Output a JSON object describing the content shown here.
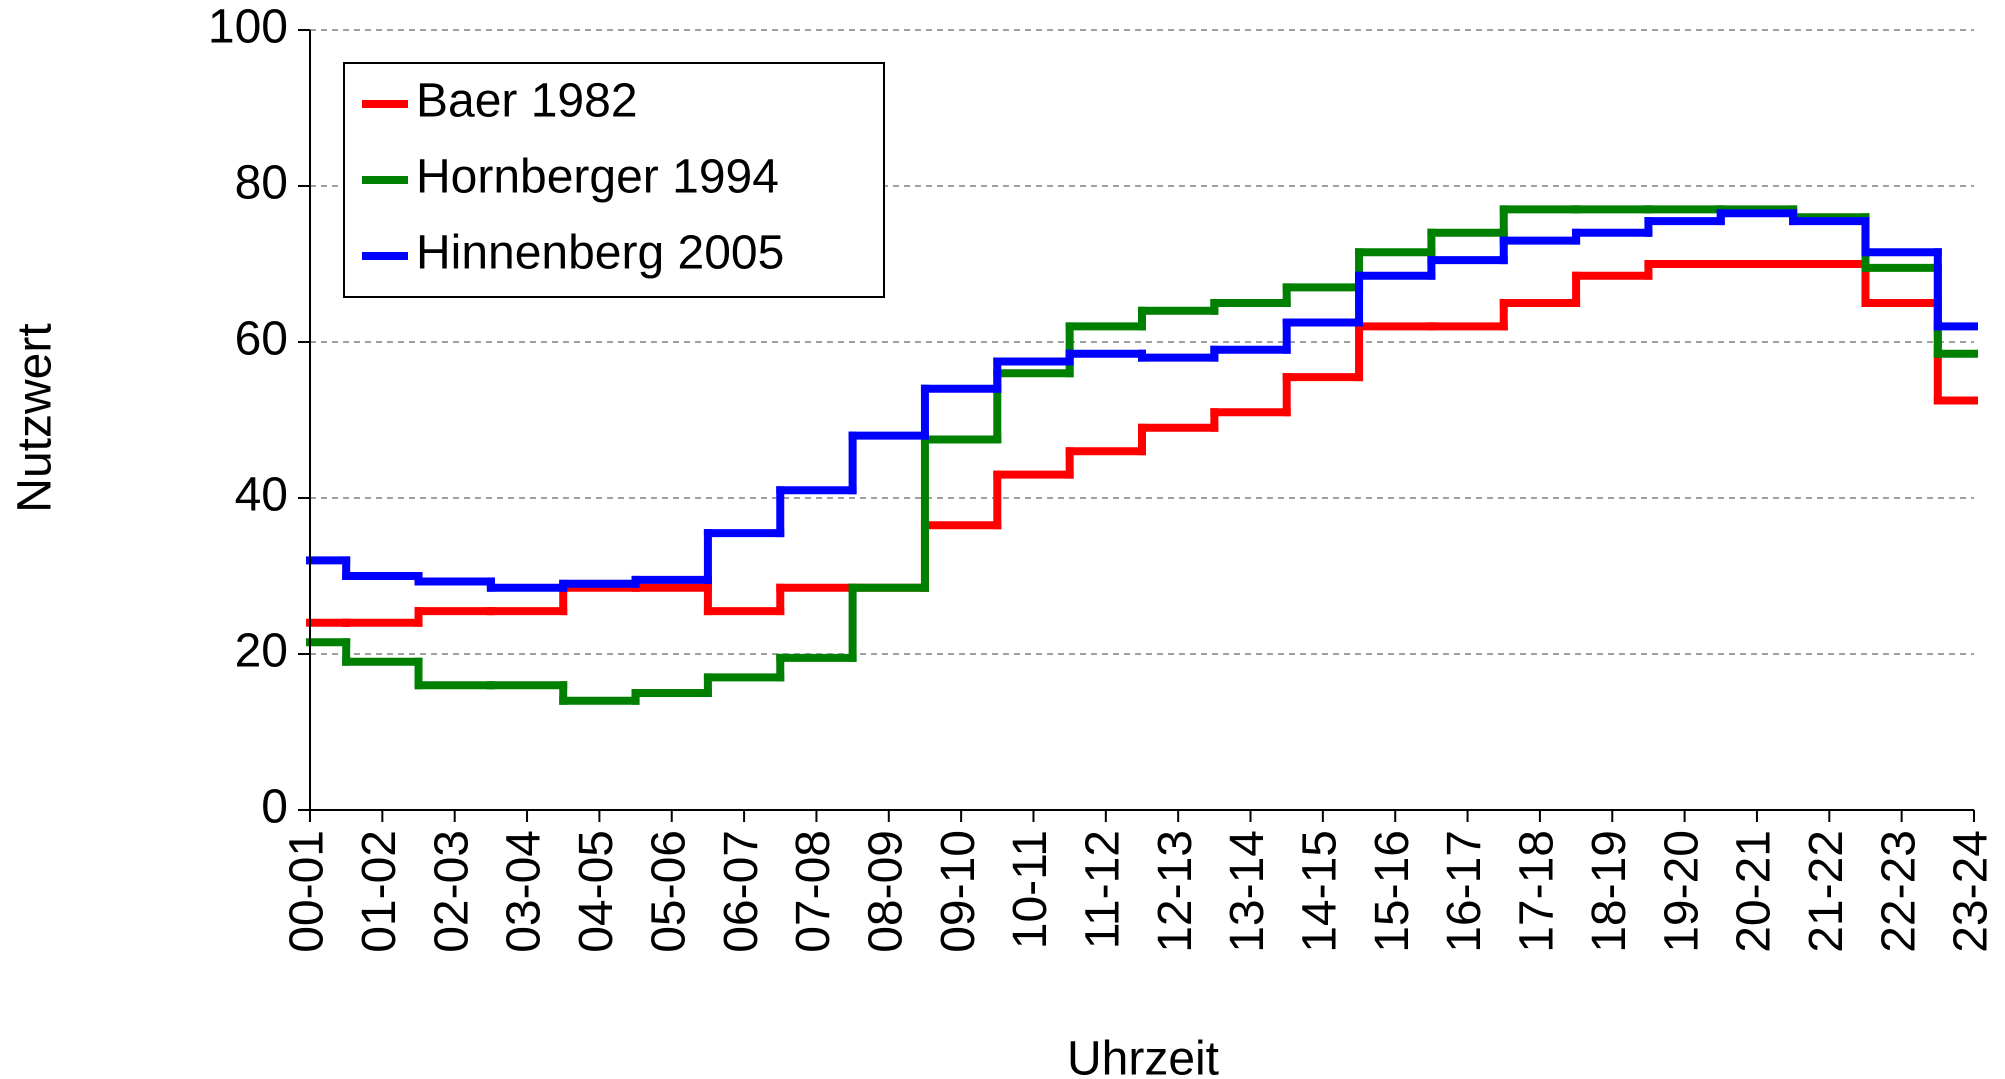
{
  "chart_data": {
    "type": "line",
    "step": "mid",
    "x_label": "Uhrzeit",
    "y_label": "Nutzwert",
    "categories": [
      "00-01",
      "01-02",
      "02-03",
      "03-04",
      "04-05",
      "05-06",
      "06-07",
      "07-08",
      "08-09",
      "09-10",
      "10-11",
      "11-12",
      "12-13",
      "13-14",
      "14-15",
      "15-16",
      "16-17",
      "17-18",
      "18-19",
      "19-20",
      "20-21",
      "21-22",
      "22-23",
      "23-24"
    ],
    "series": [
      {
        "name": "Baer 1982",
        "color": "#ff0000",
        "values": [
          24,
          24,
          25.5,
          25.5,
          28.5,
          28.5,
          25.5,
          28.5,
          28.5,
          36.5,
          43,
          46,
          49,
          51,
          55.5,
          62,
          62,
          65,
          68.5,
          70,
          70,
          70,
          65,
          52.5
        ]
      },
      {
        "name": "Hornberger 1994",
        "color": "#008000",
        "values": [
          21.5,
          19,
          16,
          16,
          14,
          15,
          17,
          19.5,
          28.5,
          47.5,
          56,
          62,
          64,
          65,
          67,
          71.5,
          74,
          77,
          77,
          77,
          77,
          76,
          69.5,
          58.5
        ]
      },
      {
        "name": "Hinnenberg 2005",
        "color": "#0000ff",
        "values": [
          32,
          30,
          29.3,
          28.5,
          29,
          29.5,
          35.5,
          41,
          48,
          54,
          57.5,
          58.5,
          58,
          59,
          62.5,
          68.5,
          70.5,
          73,
          74,
          75.5,
          76.5,
          75.5,
          71.5,
          62
        ]
      }
    ],
    "ylim": [
      0,
      100
    ],
    "yticks": [
      0,
      20,
      40,
      60,
      80,
      100
    ],
    "grid": true,
    "legend": "upper left"
  }
}
